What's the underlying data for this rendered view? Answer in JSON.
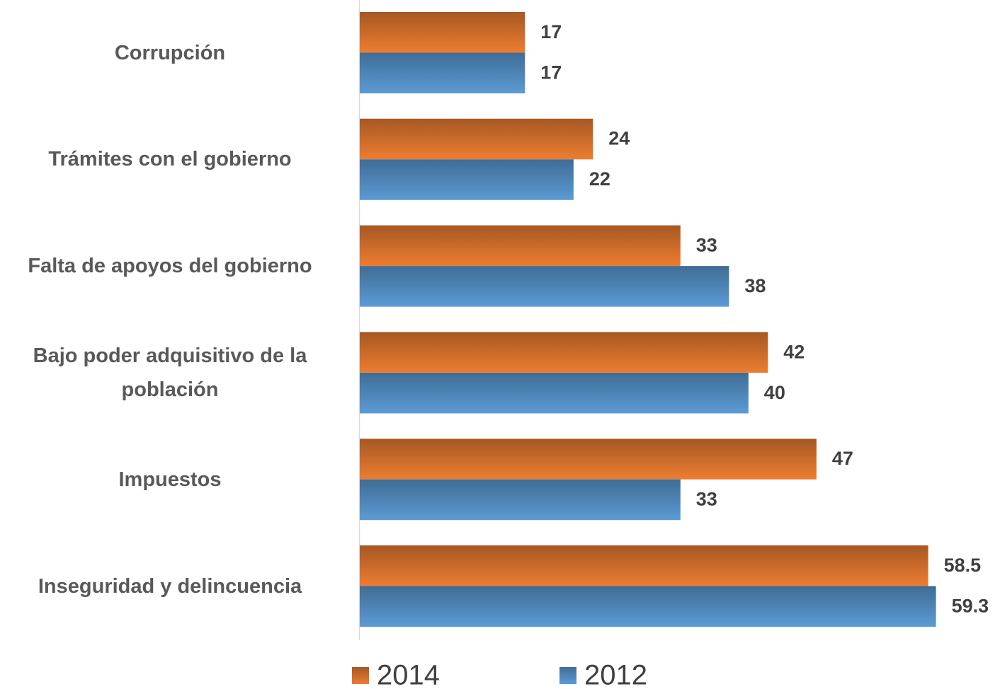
{
  "chart_data": {
    "type": "bar",
    "categories": [
      "Corrupción",
      "Trámites con el gobierno",
      "Falta de apoyos del gobierno",
      "Bajo poder adquisitivo de la población",
      "Impuestos",
      "Inseguridad y delincuencia"
    ],
    "series": [
      {
        "name": "2014",
        "color": "#ed7d31",
        "values": [
          17,
          24,
          33,
          42,
          47,
          58.5
        ]
      },
      {
        "name": "2012",
        "color": "#5b9bd5",
        "values": [
          17,
          22,
          38,
          40,
          33,
          59.3
        ]
      }
    ]
  }
}
